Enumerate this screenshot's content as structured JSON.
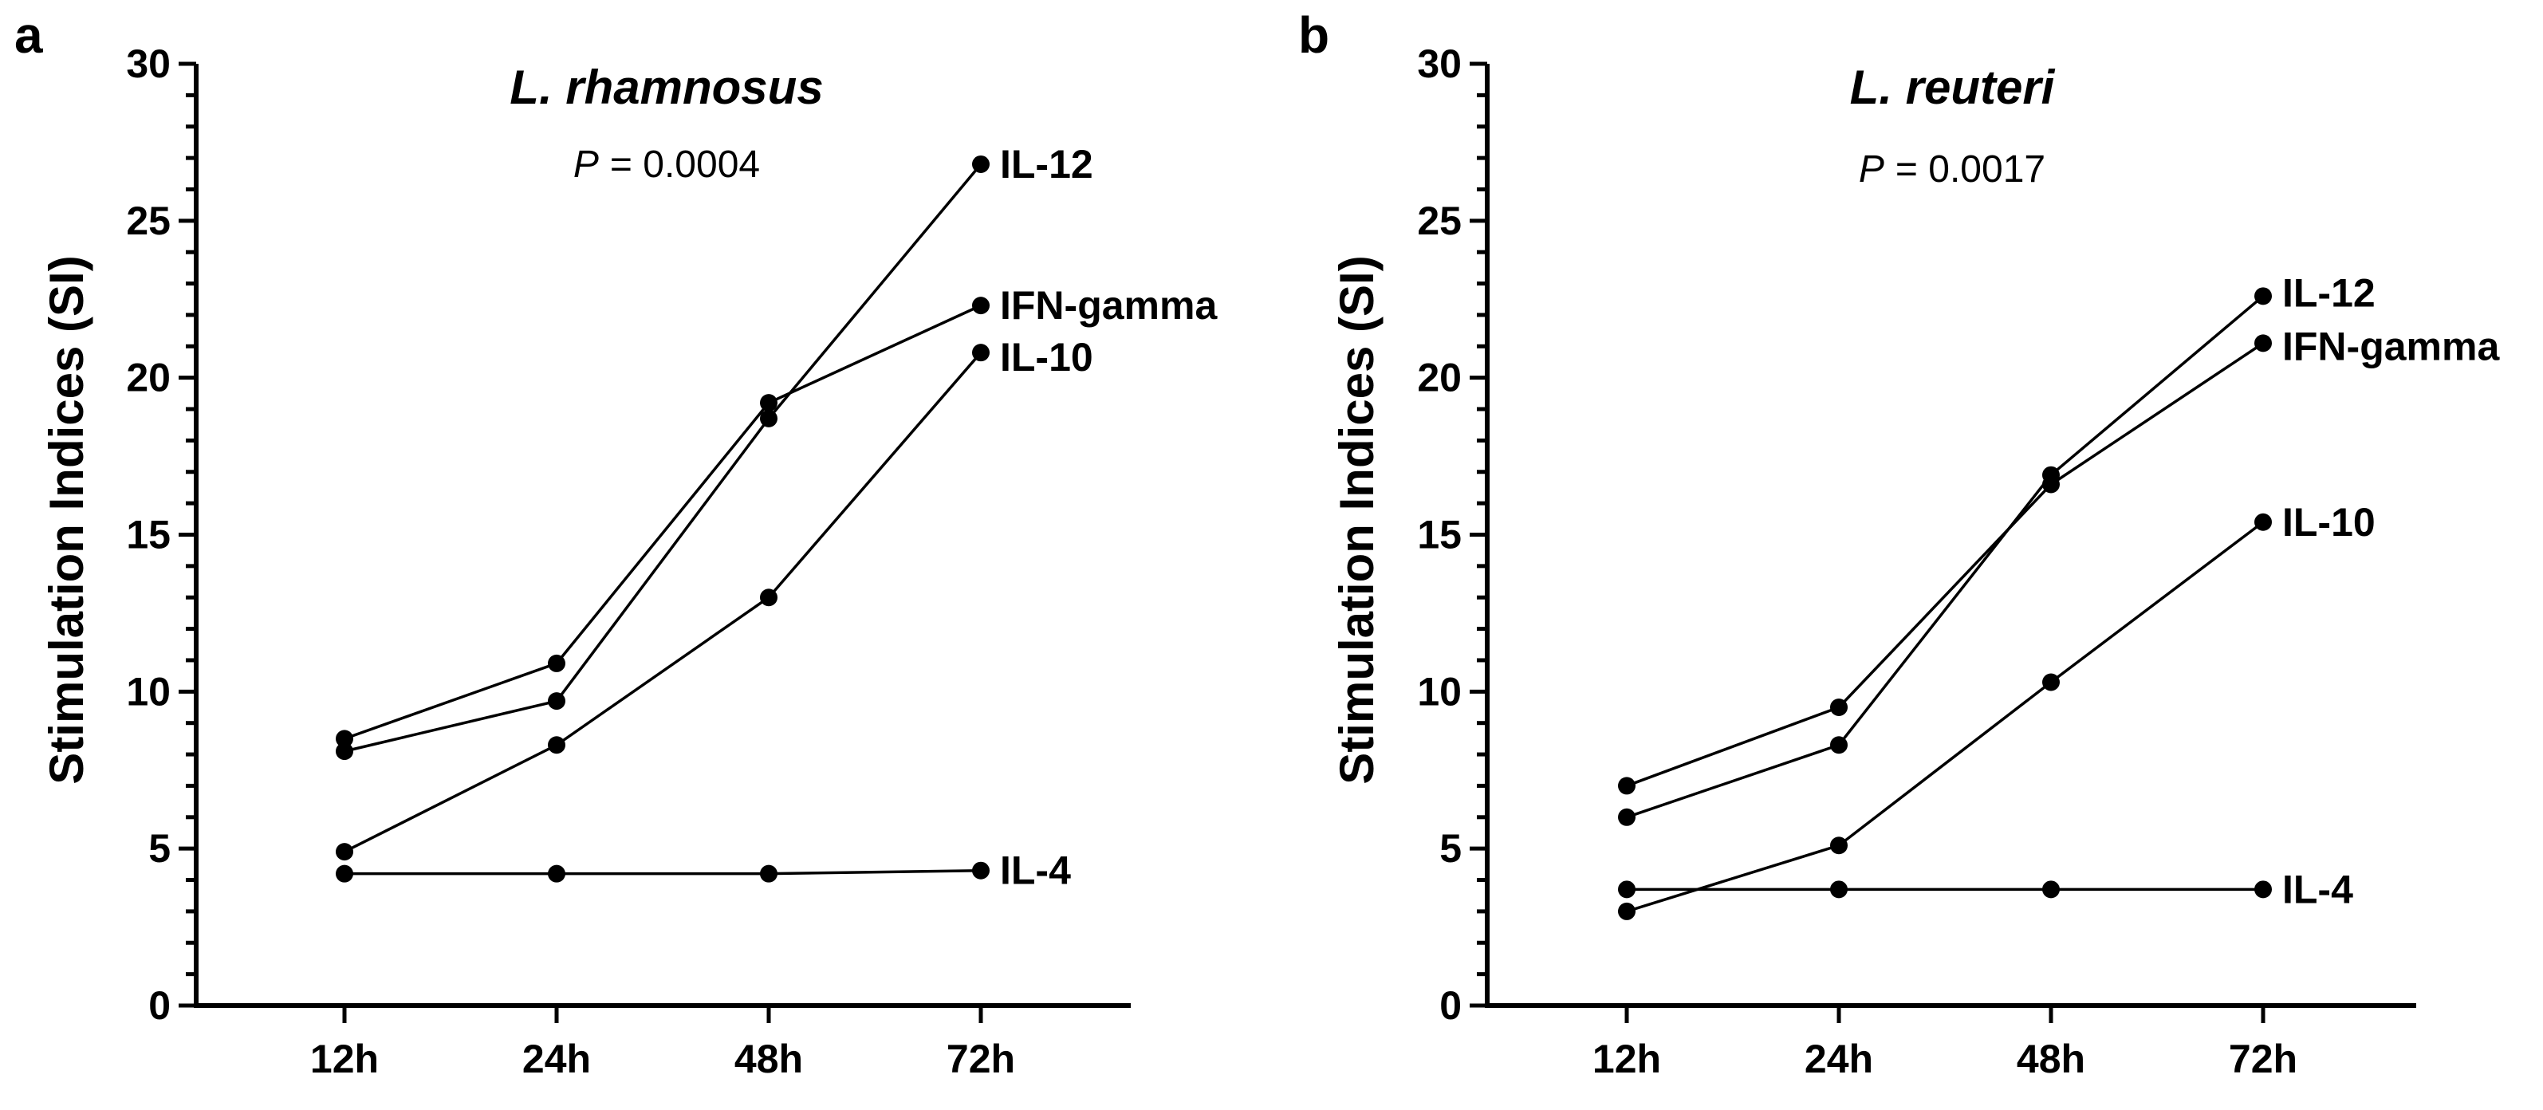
{
  "chart_data": [
    {
      "panel": "a",
      "type": "line",
      "title": "L. rhamnosus",
      "p_label": "P",
      "p_value": "= 0.0004",
      "xlabel": "",
      "ylabel": "Stimulation Indices (SI)",
      "categories": [
        "12h",
        "24h",
        "48h",
        "72h"
      ],
      "ylim": [
        0,
        30
      ],
      "yticks": [
        0,
        5,
        10,
        15,
        20,
        25,
        30
      ],
      "grid": false,
      "series": [
        {
          "name": "IL-12",
          "values": [
            8.1,
            9.7,
            18.7,
            26.8
          ]
        },
        {
          "name": "IFN-gamma",
          "values": [
            8.5,
            10.9,
            19.2,
            22.3
          ]
        },
        {
          "name": "IL-10",
          "values": [
            4.9,
            8.3,
            13.0,
            20.8
          ]
        },
        {
          "name": "IL-4",
          "values": [
            4.2,
            4.2,
            4.2,
            4.3
          ]
        }
      ]
    },
    {
      "panel": "b",
      "type": "line",
      "title": "L. reuteri",
      "p_label": "P",
      "p_value": "= 0.0017",
      "xlabel": "",
      "ylabel": "Stimulation Indices (SI)",
      "categories": [
        "12h",
        "24h",
        "48h",
        "72h"
      ],
      "ylim": [
        0,
        30
      ],
      "yticks": [
        0,
        5,
        10,
        15,
        20,
        25,
        30
      ],
      "grid": false,
      "series": [
        {
          "name": "IL-12",
          "values": [
            6.0,
            8.3,
            16.9,
            22.6
          ]
        },
        {
          "name": "IFN-gamma",
          "values": [
            7.0,
            9.5,
            16.6,
            21.1
          ]
        },
        {
          "name": "IL-10",
          "values": [
            3.0,
            5.1,
            10.3,
            15.4
          ]
        },
        {
          "name": "IL-4",
          "values": [
            3.7,
            3.7,
            3.7,
            3.7
          ]
        }
      ]
    }
  ]
}
